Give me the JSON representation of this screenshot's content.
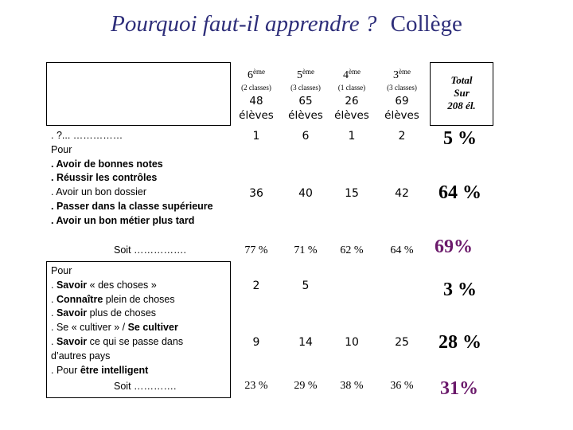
{
  "title": {
    "main": "Pourquoi faut-il apprendre ?",
    "level": "Collège"
  },
  "grades": [
    {
      "level": "6",
      "suffix": "ème",
      "classes": "(2 classes)",
      "students": "48",
      "unit": "élèves"
    },
    {
      "level": "5",
      "suffix": "ème",
      "classes": "(3 classes)",
      "students": "65",
      "unit": "élèves"
    },
    {
      "level": "4",
      "suffix": "ème",
      "classes": "(1 classe)",
      "students": "26",
      "unit": "élèves"
    },
    {
      "level": "3",
      "suffix": "ème",
      "classes": "(3 classes)",
      "students": "69",
      "unit": "élèves"
    }
  ],
  "total_header": {
    "line1": "Total",
    "line2": "Sur",
    "line3": "208 él."
  },
  "section1": {
    "intro": ". ?... ……………",
    "pour": "Pour",
    "items": [
      ". Avoir de bonnes notes",
      ". Réussir les contrôles",
      ". Avoir un bon dossier",
      ". Passer dans la classe supérieure",
      ". Avoir un bon métier plus tard"
    ],
    "soit": "Soit …………….",
    "row_a": {
      "values": [
        "1",
        "6",
        "1",
        "2"
      ],
      "total": "5 %"
    },
    "row_b": {
      "values": [
        "36",
        "40",
        "15",
        "42"
      ],
      "total": "64 %"
    },
    "row_pct": {
      "values": [
        "77 %",
        "71 %",
        "62 %",
        "64 %"
      ],
      "total": "69%"
    }
  },
  "section2": {
    "pour": "Pour",
    "l1_a": ". ",
    "l1_b": "Savoir",
    "l1_c": " « des choses »",
    "l2_a": ". ",
    "l2_b": "Connaître",
    "l2_c": " plein de choses",
    "l3_a": ". ",
    "l3_b": "Savoir",
    "l3_c": " plus de choses",
    "l4_a": ". Se « cultiver » / ",
    "l4_b": "Se cultiver",
    "l4_c": "",
    "l5_a": ". ",
    "l5_b": "Savoir",
    "l5_c": " ce qui se passe dans",
    "l6": "d’autres pays",
    "l7_a": ". Pour ",
    "l7_b": "être intelligent",
    "soit": "Soit ………….",
    "row_a": {
      "values": [
        "2",
        "5",
        "",
        ""
      ],
      "total": "3 %"
    },
    "row_b": {
      "values": [
        "9",
        "14",
        "10",
        "25"
      ],
      "total": "28 %"
    },
    "row_pct": {
      "values": [
        "23 %",
        "29 %",
        "38 %",
        "36 %"
      ],
      "total": "31%"
    }
  }
}
